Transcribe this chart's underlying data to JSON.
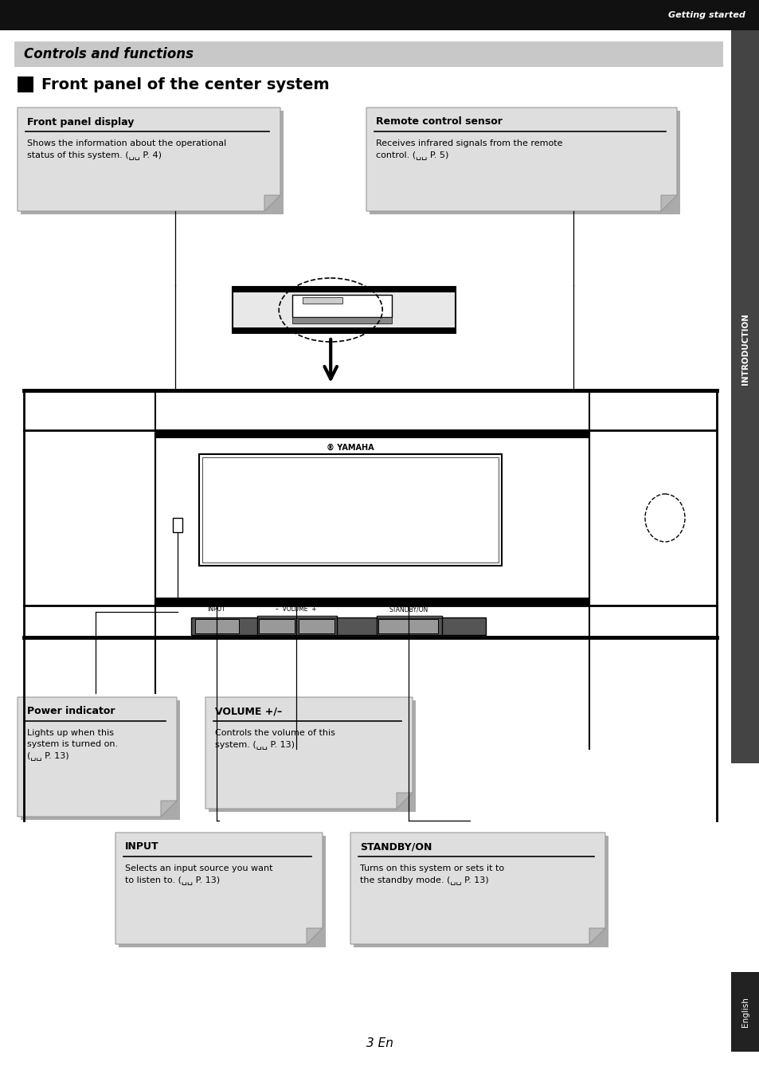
{
  "page_bg": "#ffffff",
  "top_bar_color": "#111111",
  "top_bar_text": "Getting started",
  "section_bar_color": "#c8c8c8",
  "section_title": "Controls and functions",
  "subsection_title": "Front panel of the center system",
  "sidebar_color": "#444444",
  "sidebar_text_top": "INTRODUCTION",
  "sidebar_text_bottom": "English",
  "page_number": "3 En",
  "callout_bg": "#dedede",
  "callout_shadow": "#b8b8b8",
  "callout_fold": "#c0c0c0"
}
